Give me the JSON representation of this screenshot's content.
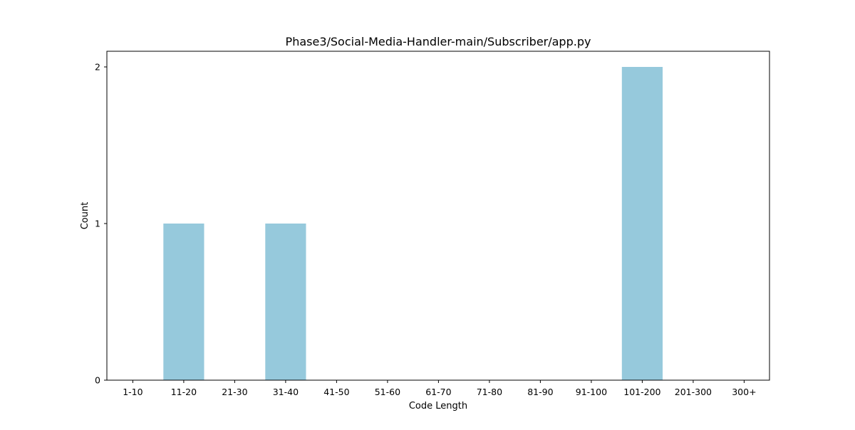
{
  "chart_data": {
    "type": "bar",
    "title": "Phase3/Social-Media-Handler-main/Subscriber/app.py",
    "xlabel": "Code Length",
    "ylabel": "Count",
    "categories": [
      "1-10",
      "11-20",
      "21-30",
      "31-40",
      "41-50",
      "51-60",
      "61-70",
      "71-80",
      "81-90",
      "91-100",
      "101-200",
      "201-300",
      "300+"
    ],
    "values": [
      0,
      1,
      0,
      1,
      0,
      0,
      0,
      0,
      0,
      0,
      2,
      0,
      0
    ],
    "ylim": [
      0,
      2.1
    ],
    "yticks": [
      0,
      1,
      2
    ],
    "bar_color": "#96c9dc",
    "grid": false,
    "legend": "none"
  }
}
